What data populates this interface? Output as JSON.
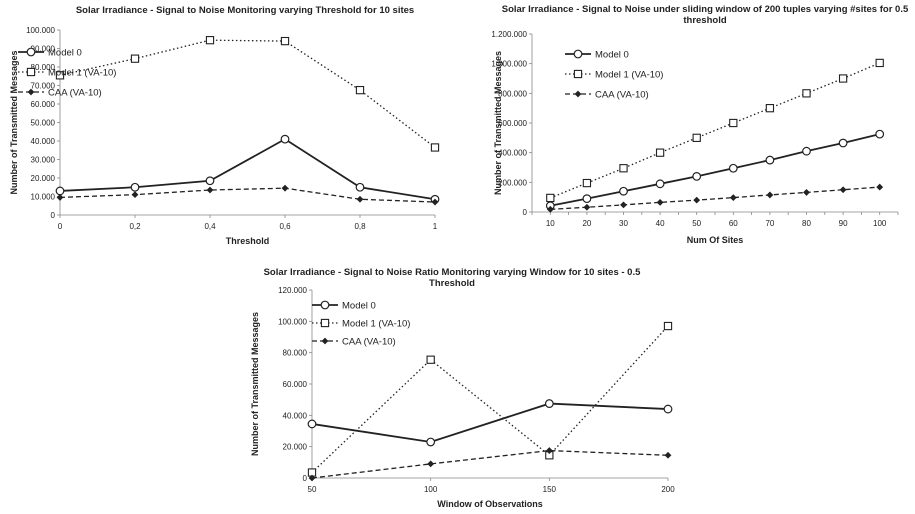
{
  "chart_data": [
    {
      "type": "line",
      "title_lines": [
        "Solar Irradiance - Signal to Noise Monitoring varying Threshold for 10 sites"
      ],
      "xlabel": "Threshold",
      "ylabel": "Number of Transmitted Messages",
      "categories": [
        "0",
        "0,2",
        "0,4",
        "0,6",
        "0,8",
        "1"
      ],
      "ylim": [
        0,
        100000
      ],
      "ytick_values": [
        0,
        10000,
        20000,
        30000,
        40000,
        50000,
        60000,
        70000,
        80000,
        90000,
        100000
      ],
      "ytick_labels": [
        "0",
        "10.000",
        "20.000",
        "30.000",
        "40.000",
        "50.000",
        "60.000",
        "70.000",
        "80.000",
        "90.000",
        "100.000"
      ],
      "legend_position": "top-left",
      "series": [
        {
          "name": "Model 0",
          "style": "solid",
          "marker": "circle",
          "values": [
            13000,
            15000,
            18500,
            41000,
            15000,
            8500
          ]
        },
        {
          "name": "Model 1 (VA-10)",
          "style": "dotted",
          "marker": "square",
          "values": [
            75500,
            84500,
            94500,
            94000,
            67500,
            36500
          ]
        },
        {
          "name": "CAA (VA-10)",
          "style": "dashed",
          "marker": "diamond",
          "values": [
            9500,
            11000,
            13500,
            14500,
            8500,
            7000
          ]
        }
      ]
    },
    {
      "type": "line",
      "title_lines": [
        "Solar Irradiance - Signal to Noise under sliding window of 200 tuples varying #sites for 0.5",
        "threshold"
      ],
      "xlabel": "Num Of Sites",
      "ylabel": "Number of Transmitted Messages",
      "categories": [
        "10",
        "20",
        "30",
        "40",
        "50",
        "60",
        "70",
        "80",
        "90",
        "100"
      ],
      "ylim": [
        0,
        1200000
      ],
      "ytick_values": [
        0,
        200000,
        400000,
        600000,
        800000,
        1000000,
        1200000
      ],
      "ytick_labels": [
        "0",
        "200.000",
        "400.000",
        "600.000",
        "800.000",
        "1.000.000",
        "1.200.000"
      ],
      "legend_position": "top-left",
      "series": [
        {
          "name": "Model 0",
          "style": "solid",
          "marker": "circle",
          "values": [
            42000,
            90000,
            140000,
            190000,
            240000,
            295000,
            350000,
            410000,
            465000,
            525000
          ]
        },
        {
          "name": "Model 1 (VA-10)",
          "style": "dotted",
          "marker": "square",
          "values": [
            95000,
            195000,
            295000,
            400000,
            500000,
            600000,
            700000,
            800000,
            900000,
            1005000
          ]
        },
        {
          "name": "CAA (VA-10)",
          "style": "dashed",
          "marker": "diamond",
          "values": [
            18000,
            32000,
            48000,
            65000,
            80000,
            97000,
            115000,
            132000,
            150000,
            168000
          ]
        }
      ]
    },
    {
      "type": "line",
      "title_lines": [
        "Solar Irradiance - Signal to Noise Ratio Monitoring varying Window for 10 sites - 0.5",
        "Threshold"
      ],
      "xlabel": "Window of Observations",
      "ylabel": "Number of Transmitted Messages",
      "categories": [
        "50",
        "100",
        "150",
        "200"
      ],
      "ylim": [
        0,
        120000
      ],
      "ytick_values": [
        0,
        20000,
        40000,
        60000,
        80000,
        100000,
        120000
      ],
      "ytick_labels": [
        "0",
        "20.000",
        "40.000",
        "60.000",
        "80.000",
        "100.000",
        "120.000"
      ],
      "legend_position": "top-left",
      "series": [
        {
          "name": "Model 0",
          "style": "solid",
          "marker": "circle",
          "values": [
            34500,
            23000,
            47500,
            44000
          ]
        },
        {
          "name": "Model 1 (VA-10)",
          "style": "dotted",
          "marker": "square",
          "values": [
            3500,
            75500,
            14500,
            97000
          ]
        },
        {
          "name": "CAA (VA-10)",
          "style": "dashed",
          "marker": "diamond",
          "values": [
            0,
            9000,
            17500,
            14500
          ]
        }
      ]
    }
  ]
}
